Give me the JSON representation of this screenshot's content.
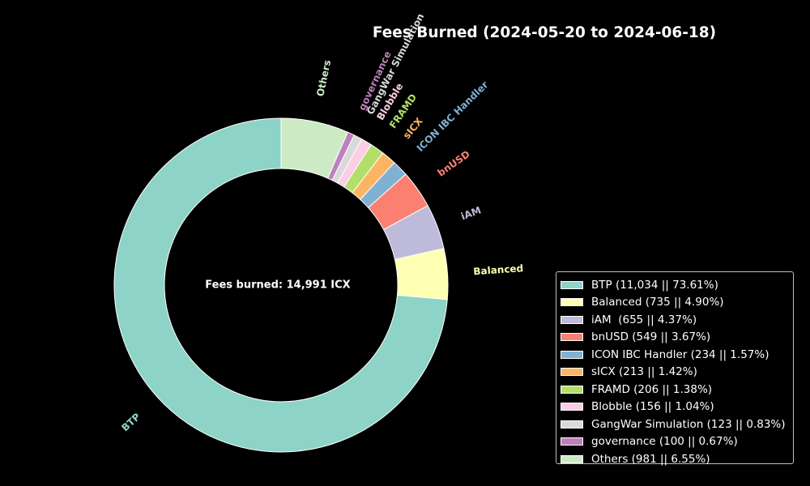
{
  "chart_data": {
    "type": "pie",
    "style": "donut",
    "title": "Fees Burned (2024-05-20 to 2024-06-18)",
    "center_text": "Fees burned: 14,991 ICX",
    "legend_position": "lower-right",
    "slices": [
      {
        "label": "BTP",
        "value": 11034,
        "percent": 73.61,
        "color": "#8dd3c7",
        "legend": "BTP (11,034 || 73.61%)"
      },
      {
        "label": "Balanced",
        "value": 735,
        "percent": 4.9,
        "color": "#ffffb3",
        "legend": "Balanced (735 || 4.90%)"
      },
      {
        "label": "iAM",
        "value": 655,
        "percent": 4.37,
        "color": "#bebada",
        "legend": "iAM  (655 || 4.37%)"
      },
      {
        "label": "bnUSD",
        "value": 549,
        "percent": 3.67,
        "color": "#fb8072",
        "legend": "bnUSD (549 || 3.67%)"
      },
      {
        "label": "ICON IBC Handler",
        "value": 234,
        "percent": 1.57,
        "color": "#80b1d3",
        "legend": "ICON IBC Handler (234 || 1.57%)"
      },
      {
        "label": "sICX",
        "value": 213,
        "percent": 1.42,
        "color": "#fdb462",
        "legend": "sICX (213 || 1.42%)"
      },
      {
        "label": "FRAMD",
        "value": 206,
        "percent": 1.38,
        "color": "#b3de69",
        "legend": "FRAMD (206 || 1.38%)"
      },
      {
        "label": "Blobble",
        "value": 156,
        "percent": 1.04,
        "color": "#fccde5",
        "legend": "Blobble (156 || 1.04%)"
      },
      {
        "label": "GangWar Simulation",
        "value": 123,
        "percent": 0.83,
        "color": "#d9d9d9",
        "legend": "GangWar Simulation (123 || 0.83%)"
      },
      {
        "label": "governance",
        "value": 100,
        "percent": 0.67,
        "color": "#bc80bd",
        "legend": "governance (100 || 0.67%)"
      },
      {
        "label": "Others",
        "value": 981,
        "percent": 6.55,
        "color": "#ccebc5",
        "legend": "Others (981 || 6.55%)"
      }
    ]
  }
}
